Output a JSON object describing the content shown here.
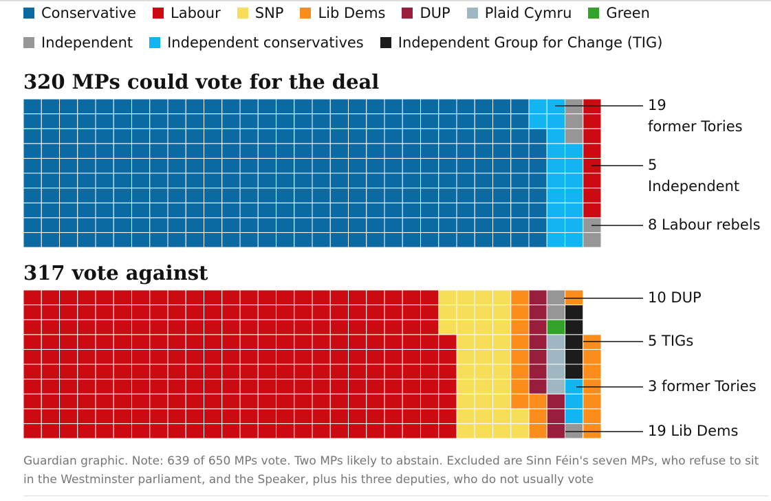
{
  "colors": {
    "conservative": "#0b6aa2",
    "labour": "#cc0a11",
    "snp": "#f8de58",
    "libdem": "#fa8d1b",
    "dup": "#991e3b",
    "plaid": "#9eb7c3",
    "green": "#33a22b",
    "independent": "#969696",
    "indcon": "#12b4f2",
    "tig": "#1c1c1c"
  },
  "legend": [
    {
      "label": "Conservative",
      "color": "#0b6aa2"
    },
    {
      "label": "Labour",
      "color": "#cc0a11"
    },
    {
      "label": "SNP",
      "color": "#f8de58"
    },
    {
      "label": "Lib Dems",
      "color": "#fa8d1b"
    },
    {
      "label": "DUP",
      "color": "#991e3b"
    },
    {
      "label": "Plaid Cymru",
      "color": "#9eb7c3"
    },
    {
      "label": "Green",
      "color": "#33a22b"
    },
    {
      "label": "Independent",
      "color": "#969696"
    },
    {
      "label": "Independent conservatives",
      "color": "#12b4f2"
    },
    {
      "label": "Independent Group for Change (TIG)",
      "color": "#1c1c1c"
    }
  ],
  "chart_data": {
    "type": "waffle",
    "charts": [
      {
        "title": "320 MPs could vote for the deal",
        "total": 320,
        "rows": 10,
        "columns": 33,
        "series": [
          {
            "party": "Conservative",
            "key": "conservative",
            "value": 288
          },
          {
            "party": "Independent conservatives",
            "key": "indcon",
            "value": 19
          },
          {
            "party": "Independent",
            "key": "independent",
            "value": 5
          },
          {
            "party": "Labour",
            "key": "labour",
            "value": 8
          }
        ],
        "annotations": [
          {
            "text_lines": [
              "19",
              "former Tories"
            ]
          },
          {
            "text_lines": [
              "5",
              "Independent"
            ]
          },
          {
            "text_lines": [
              "8 Labour rebels"
            ]
          }
        ]
      },
      {
        "title": "317 vote against",
        "total": 317,
        "rows": 10,
        "columns": 33,
        "series": [
          {
            "party": "Labour",
            "key": "labour",
            "value": 237
          },
          {
            "party": "SNP",
            "key": "snp",
            "value": 35
          },
          {
            "party": "Lib Dems",
            "key": "libdem",
            "value": 11
          },
          {
            "party": "DUP",
            "key": "dup",
            "value": 10
          },
          {
            "party": "Plaid Cymru",
            "key": "plaid",
            "value": 4
          },
          {
            "party": "Green",
            "key": "green",
            "value": 1
          },
          {
            "party": "Independent",
            "key": "independent",
            "value": 3
          },
          {
            "party": "Independent conservatives",
            "key": "indcon",
            "value": 3
          },
          {
            "party": "Independent Group for Change (TIG)",
            "key": "tig",
            "value": 5
          },
          {
            "party": "Lib Dems",
            "key": "libdem",
            "value": 8
          }
        ],
        "annotations": [
          {
            "text_lines": [
              "10 DUP"
            ]
          },
          {
            "text_lines": [
              "5 TIGs"
            ]
          },
          {
            "text_lines": [
              "3 former Tories"
            ]
          },
          {
            "text_lines": [
              "19 Lib Dems"
            ]
          }
        ]
      }
    ]
  },
  "footnote": "Guardian graphic. Note: 639 of 650 MPs vote. Two MPs likely to abstain. Excluded are Sinn Féin's seven MPs, who refuse to sit in the Westminster parliament, and the Speaker, plus his three deputies, who do not usually vote"
}
